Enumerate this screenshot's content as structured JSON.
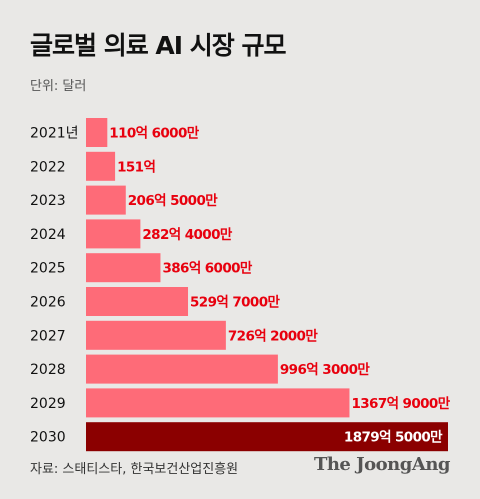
{
  "title": "글로벌 의료 AI 시장 규모",
  "unit": "단위: 달러",
  "source": "자료: 스태티스타, 한국보건산업진흥원",
  "logo": "The JoongAng",
  "colors": {
    "bar": "#fe6b78",
    "highlight": "#8b0000",
    "label": "#e8000e",
    "highlight_label": "#ffffff"
  },
  "chart_data": {
    "type": "bar",
    "orientation": "horizontal",
    "categories": [
      "2021년",
      "2022",
      "2023",
      "2024",
      "2025",
      "2026",
      "2027",
      "2028",
      "2029",
      "2030"
    ],
    "values": [
      110.6,
      151,
      206.5,
      282.4,
      386.6,
      529.7,
      726.2,
      996.3,
      1367.9,
      1879.5
    ],
    "value_unit": "억",
    "data_labels": [
      "110억 6000만",
      "151억",
      "206억 5000만",
      "282억 4000만",
      "386억 6000만",
      "529억 7000만",
      "726억 2000만",
      "996억 3000만",
      "1367억 9000만",
      "1879억 5000만"
    ],
    "highlight_index": 9,
    "title": "글로벌 의료 AI 시장 규모",
    "xlabel": "",
    "ylabel": ""
  }
}
